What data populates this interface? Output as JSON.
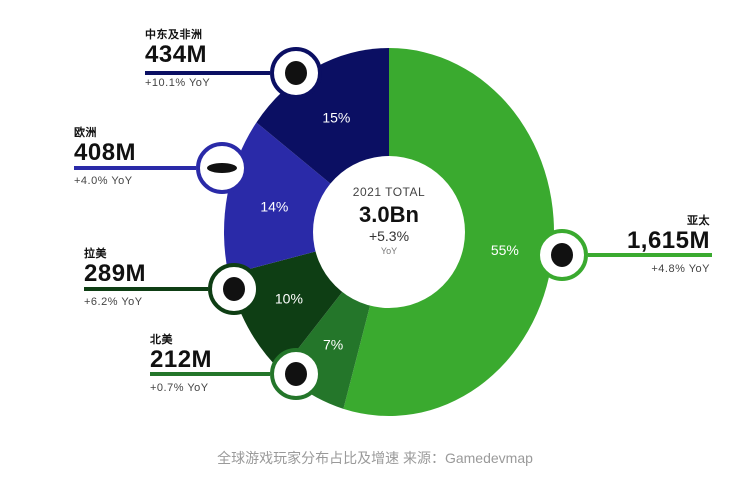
{
  "chart_data": {
    "type": "pie",
    "subtype": "donut",
    "title": "全球游戏玩家分布占比及增速",
    "center": {
      "line1": "2021 TOTAL",
      "line2": "3.0Bn",
      "line3": "+5.3%",
      "line4": "YoY"
    },
    "categories": [
      "亚太",
      "北美",
      "拉美",
      "欧洲",
      "中东及非洲"
    ],
    "values": [
      55,
      7,
      10,
      14,
      15
    ],
    "players_m": [
      1615,
      212,
      289,
      408,
      434
    ],
    "yoy_growth_pct": [
      4.8,
      0.7,
      6.2,
      4.0,
      10.1
    ],
    "colors": [
      "#3aaa2f",
      "#24762a",
      "#0e3e14",
      "#2a2aa8",
      "#0b0f63"
    ],
    "start_angle_deg": 0,
    "direction": "clockwise",
    "legend": "callouts"
  },
  "center": {
    "line1": "2021 TOTAL",
    "line2": "3.0Bn",
    "line3": "+5.3%",
    "line4": "YoY"
  },
  "slices": [
    {
      "pct_label": "55%"
    },
    {
      "pct_label": "7%"
    },
    {
      "pct_label": "10%"
    },
    {
      "pct_label": "14%"
    },
    {
      "pct_label": "15%"
    }
  ],
  "callouts": {
    "apac": {
      "region": "亚太",
      "value": "1,615M",
      "yoy": "+4.8% YoY",
      "icon": "asia-pacific-map-icon"
    },
    "na": {
      "region": "北美",
      "value": "212M",
      "yoy": "+0.7% YoY",
      "icon": "north-america-map-icon"
    },
    "latam": {
      "region": "拉美",
      "value": "289M",
      "yoy": "+6.2% YoY",
      "icon": "latin-america-map-icon"
    },
    "europe": {
      "region": "欧洲",
      "value": "408M",
      "yoy": "+4.0% YoY",
      "icon": "europe-map-icon"
    },
    "mea": {
      "region": "中东及非洲",
      "value": "434M",
      "yoy": "+10.1% YoY",
      "icon": "middle-east-africa-map-icon"
    }
  },
  "caption": "全球游戏玩家分布占比及增速 来源：Gamedevmap"
}
